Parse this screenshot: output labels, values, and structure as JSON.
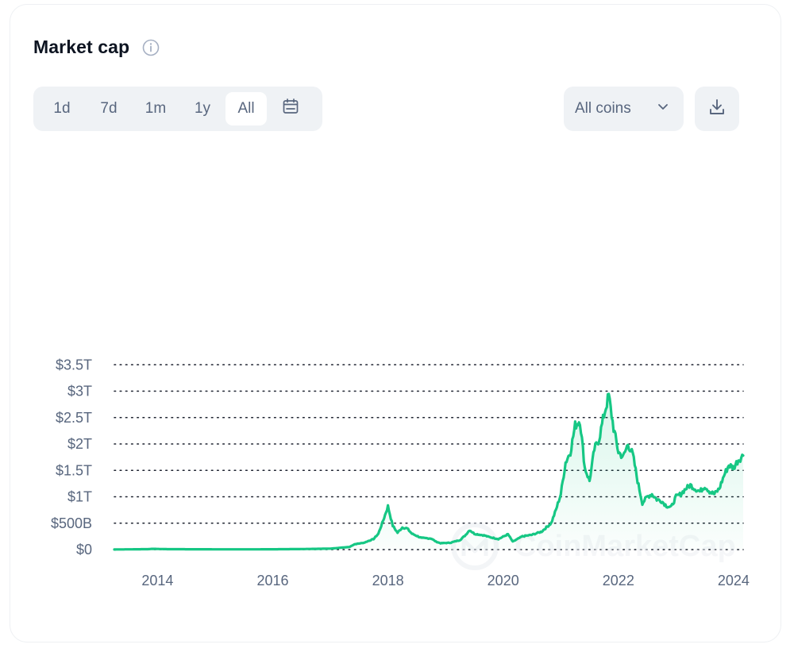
{
  "header": {
    "title": "Market cap"
  },
  "toolbar": {
    "ranges": [
      {
        "label": "1d",
        "active": false
      },
      {
        "label": "7d",
        "active": false
      },
      {
        "label": "1m",
        "active": false
      },
      {
        "label": "1y",
        "active": false
      },
      {
        "label": "All",
        "active": true
      }
    ],
    "calendar_icon": "calendar-icon",
    "coins_select": {
      "value": "All coins",
      "icon": "chevron-down-icon"
    },
    "download_icon": "download-icon"
  },
  "colors": {
    "line": "#16c784",
    "area": "#16c784",
    "grid": "#1e2330",
    "tick": "#58667e",
    "control_bg": "#eff2f5"
  },
  "watermark": "CoinMarketCap",
  "chart_data": {
    "type": "area",
    "title": "",
    "xlabel": "",
    "ylabel": "",
    "grid": true,
    "legend": "none",
    "x_ticks": [
      "2014",
      "2016",
      "2018",
      "2020",
      "2022",
      "2024"
    ],
    "y_ticks": [
      "$0",
      "$500B",
      "$1T",
      "$1.5T",
      "$2T",
      "$2.5T",
      "$3T",
      "$3.5T"
    ],
    "y_range": [
      0,
      3.5
    ],
    "y_unit": "trillion USD",
    "x_range": [
      "2013-04",
      "2024-03"
    ],
    "series": [
      {
        "values": [
          [
            "2013-04",
            0.002
          ],
          [
            "2013-11",
            0.008
          ],
          [
            "2013-12",
            0.014
          ],
          [
            "2014-03",
            0.008
          ],
          [
            "2014-09",
            0.006
          ],
          [
            "2015-06",
            0.004
          ],
          [
            "2016-01",
            0.006
          ],
          [
            "2016-07",
            0.01
          ],
          [
            "2017-01",
            0.018
          ],
          [
            "2017-05",
            0.05
          ],
          [
            "2017-06",
            0.1
          ],
          [
            "2017-08",
            0.13
          ],
          [
            "2017-10",
            0.2
          ],
          [
            "2017-11",
            0.3
          ],
          [
            "2017-12",
            0.55
          ],
          [
            "2018-01",
            0.82
          ],
          [
            "2018-02",
            0.45
          ],
          [
            "2018-03",
            0.32
          ],
          [
            "2018-04",
            0.42
          ],
          [
            "2018-05",
            0.4
          ],
          [
            "2018-06",
            0.3
          ],
          [
            "2018-08",
            0.22
          ],
          [
            "2018-10",
            0.21
          ],
          [
            "2018-11",
            0.15
          ],
          [
            "2018-12",
            0.12
          ],
          [
            "2019-02",
            0.13
          ],
          [
            "2019-04",
            0.18
          ],
          [
            "2019-05",
            0.26
          ],
          [
            "2019-06",
            0.37
          ],
          [
            "2019-07",
            0.3
          ],
          [
            "2019-09",
            0.27
          ],
          [
            "2019-10",
            0.24
          ],
          [
            "2019-12",
            0.2
          ],
          [
            "2020-02",
            0.29
          ],
          [
            "2020-03",
            0.15
          ],
          [
            "2020-05",
            0.25
          ],
          [
            "2020-07",
            0.28
          ],
          [
            "2020-09",
            0.34
          ],
          [
            "2020-11",
            0.5
          ],
          [
            "2020-12",
            0.75
          ],
          [
            "2021-01",
            1.05
          ],
          [
            "2021-02",
            1.65
          ],
          [
            "2021-03",
            1.85
          ],
          [
            "2021-04",
            2.35
          ],
          [
            "2021-05",
            2.45
          ],
          [
            "2021-06",
            1.55
          ],
          [
            "2021-07",
            1.3
          ],
          [
            "2021-08",
            1.9
          ],
          [
            "2021-09",
            2.1
          ],
          [
            "2021-10",
            2.55
          ],
          [
            "2021-11",
            2.92
          ],
          [
            "2021-12",
            2.3
          ],
          [
            "2022-01",
            1.85
          ],
          [
            "2022-02",
            1.75
          ],
          [
            "2022-03",
            2.0
          ],
          [
            "2022-04",
            1.8
          ],
          [
            "2022-05",
            1.3
          ],
          [
            "2022-06",
            0.88
          ],
          [
            "2022-07",
            1.0
          ],
          [
            "2022-08",
            1.05
          ],
          [
            "2022-09",
            0.95
          ],
          [
            "2022-10",
            0.92
          ],
          [
            "2022-11",
            0.83
          ],
          [
            "2022-12",
            0.8
          ],
          [
            "2023-01",
            1.0
          ],
          [
            "2023-02",
            1.05
          ],
          [
            "2023-03",
            1.15
          ],
          [
            "2023-04",
            1.22
          ],
          [
            "2023-05",
            1.15
          ],
          [
            "2023-06",
            1.1
          ],
          [
            "2023-07",
            1.2
          ],
          [
            "2023-08",
            1.1
          ],
          [
            "2023-09",
            1.05
          ],
          [
            "2023-10",
            1.15
          ],
          [
            "2023-11",
            1.4
          ],
          [
            "2023-12",
            1.6
          ],
          [
            "2024-01",
            1.55
          ],
          [
            "2024-02",
            1.7
          ],
          [
            "2024-03",
            1.78
          ]
        ]
      }
    ]
  }
}
